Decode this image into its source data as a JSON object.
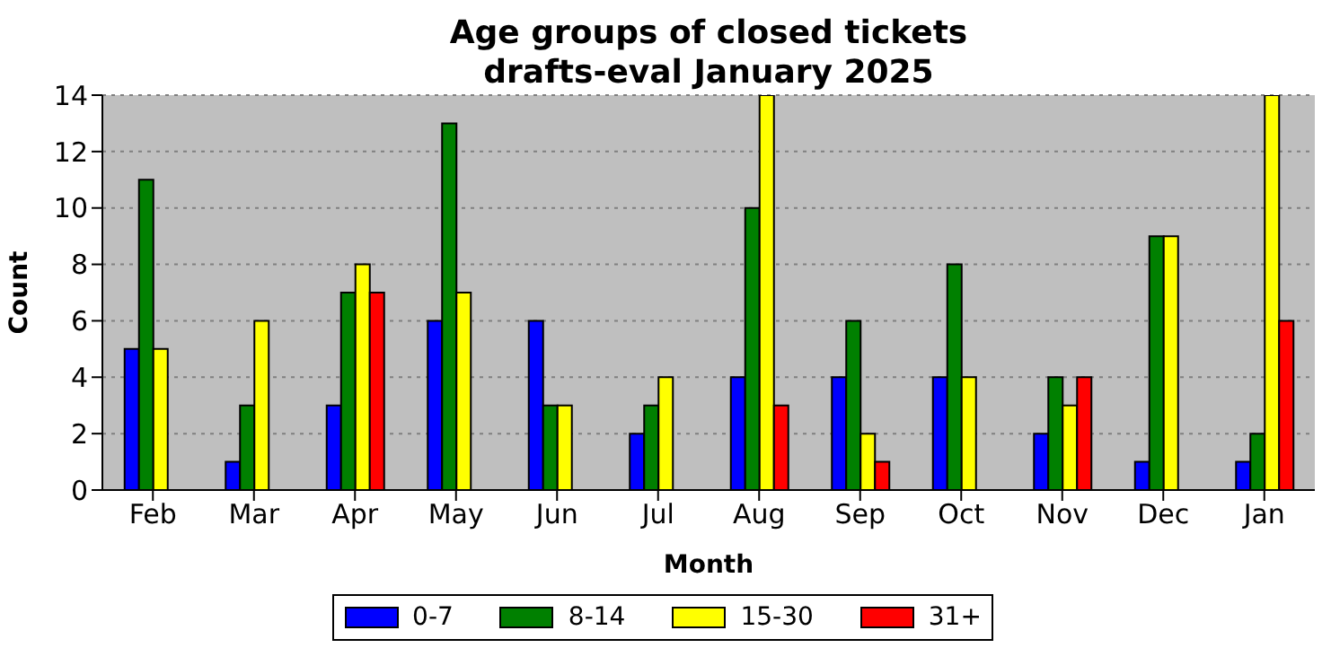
{
  "chart_data": {
    "type": "bar",
    "title": "Age groups of closed tickets\ndrafts-eval January 2025",
    "xlabel": "Month",
    "ylabel": "Count",
    "categories": [
      "Feb",
      "Mar",
      "Apr",
      "May",
      "Jun",
      "Jul",
      "Aug",
      "Sep",
      "Oct",
      "Nov",
      "Dec",
      "Jan"
    ],
    "series": [
      {
        "name": "0-7",
        "color": "#0000ff",
        "values": [
          5,
          1,
          3,
          6,
          6,
          2,
          4,
          4,
          4,
          2,
          1,
          1
        ]
      },
      {
        "name": "8-14",
        "color": "#008000",
        "values": [
          11,
          3,
          7,
          13,
          3,
          3,
          10,
          6,
          8,
          4,
          9,
          2
        ]
      },
      {
        "name": "15-30",
        "color": "#ffff00",
        "values": [
          5,
          6,
          8,
          7,
          3,
          4,
          14,
          2,
          4,
          3,
          9,
          14
        ]
      },
      {
        "name": "31+",
        "color": "#ff0000",
        "values": [
          0,
          0,
          7,
          0,
          0,
          0,
          3,
          1,
          0,
          4,
          0,
          6
        ]
      }
    ],
    "ylim": [
      0,
      14
    ],
    "yticks": [
      0,
      2,
      4,
      6,
      8,
      10,
      12,
      14
    ],
    "grid": "y",
    "legend": "bottom"
  }
}
